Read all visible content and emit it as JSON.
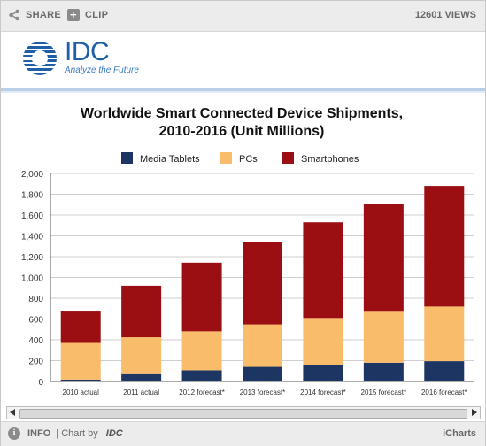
{
  "toolbar": {
    "share_label": "SHARE",
    "clip_label": "CLIP",
    "views_label": "12601 VIEWS"
  },
  "brand": {
    "logo_text": "IDC",
    "tagline": "Analyze the Future"
  },
  "footer": {
    "info_label": "INFO",
    "chart_by_label": "| Chart by",
    "chart_by_brand": "IDC",
    "provider_label": "iCharts"
  },
  "colors": {
    "media_tablets": "#1c3562",
    "pcs": "#f9bc6a",
    "smartphones": "#9b0f13",
    "axis": "#555555",
    "gridline": "#cfcfcf"
  },
  "icons": {
    "share": "share-icon",
    "clip": "plus-icon",
    "info": "info-icon"
  },
  "chart_data": {
    "type": "bar",
    "stacked": true,
    "title": "Worldwide Smart Connected Device Shipments, 2010-2016 (Unit Millions)",
    "title_lines": [
      "Worldwide Smart Connected Device Shipments,",
      "2010-2016 (Unit Millions)"
    ],
    "xlabel": "",
    "ylabel": "",
    "ylim": [
      0,
      2000
    ],
    "yticks": [
      0,
      200,
      400,
      600,
      800,
      1000,
      1200,
      1400,
      1600,
      1800,
      2000
    ],
    "ytick_labels": [
      "0",
      "200",
      "400",
      "600",
      "800",
      "1,000",
      "1,200",
      "1,400",
      "1,600",
      "1,800",
      "2,000"
    ],
    "grid": true,
    "legend_position": "top",
    "categories": [
      "2010 actual",
      "2011 actual",
      "2012 forecast*",
      "2013 forecast*",
      "2014 forecast*",
      "2015 forecast*",
      "2016 forecast*"
    ],
    "series": [
      {
        "name": "Media Tablets",
        "color": "#1c3562",
        "values": [
          18,
          70,
          107,
          140,
          160,
          180,
          195
        ]
      },
      {
        "name": "PCs",
        "color": "#f9bc6a",
        "values": [
          352,
          355,
          375,
          408,
          450,
          490,
          525
        ]
      },
      {
        "name": "Smartphones",
        "color": "#9b0f13",
        "values": [
          302,
          495,
          660,
          795,
          920,
          1040,
          1160
        ]
      }
    ]
  }
}
